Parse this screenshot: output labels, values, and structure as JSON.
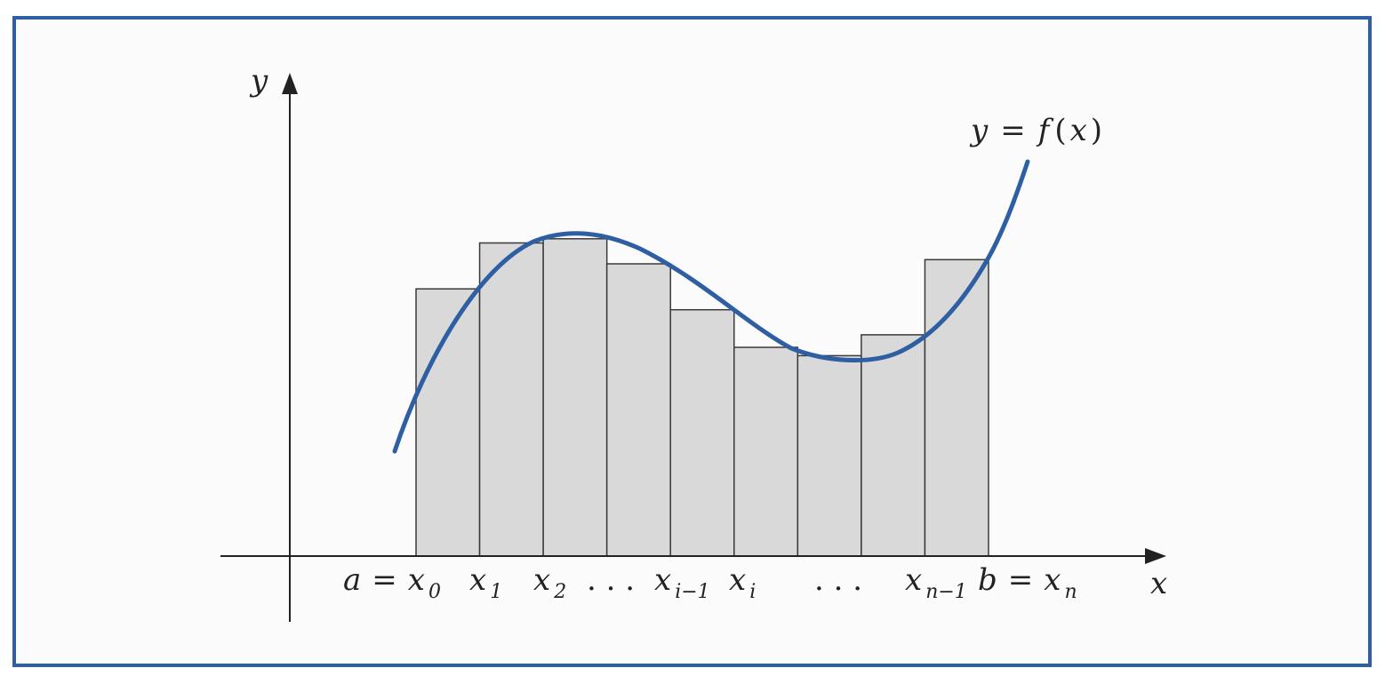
{
  "colors": {
    "frame": "#2f5fa3",
    "curve": "#2f5fa3",
    "bar_fill": "#d9d9d9",
    "bar_stroke": "#3a3a3a",
    "axis": "#222222"
  },
  "axes": {
    "x_label": "x",
    "y_label": "y"
  },
  "curve_label": {
    "pre": "y",
    "eq": "=",
    "func": "f",
    "arg_open": "(",
    "arg": "x",
    "arg_close": ")"
  },
  "rectangles": {
    "count": 9,
    "heights": [
      0.64,
      0.75,
      0.76,
      0.7,
      0.59,
      0.5,
      0.48,
      0.53,
      0.71
    ]
  },
  "tick_labels": {
    "a": {
      "left": "a",
      "eq": "=",
      "base": "x",
      "sub": "0"
    },
    "x1": {
      "base": "x",
      "sub": "1"
    },
    "x2": {
      "base": "x",
      "sub": "2"
    },
    "dots1": ". . .",
    "xim1": {
      "base": "x",
      "sub": "i−1"
    },
    "xi": {
      "base": "x",
      "sub": "i"
    },
    "dots2": ". . .",
    "xnm1": {
      "base": "x",
      "sub": "n−1"
    },
    "b": {
      "left": "b",
      "eq": "=",
      "base": "x",
      "sub": "n"
    }
  }
}
